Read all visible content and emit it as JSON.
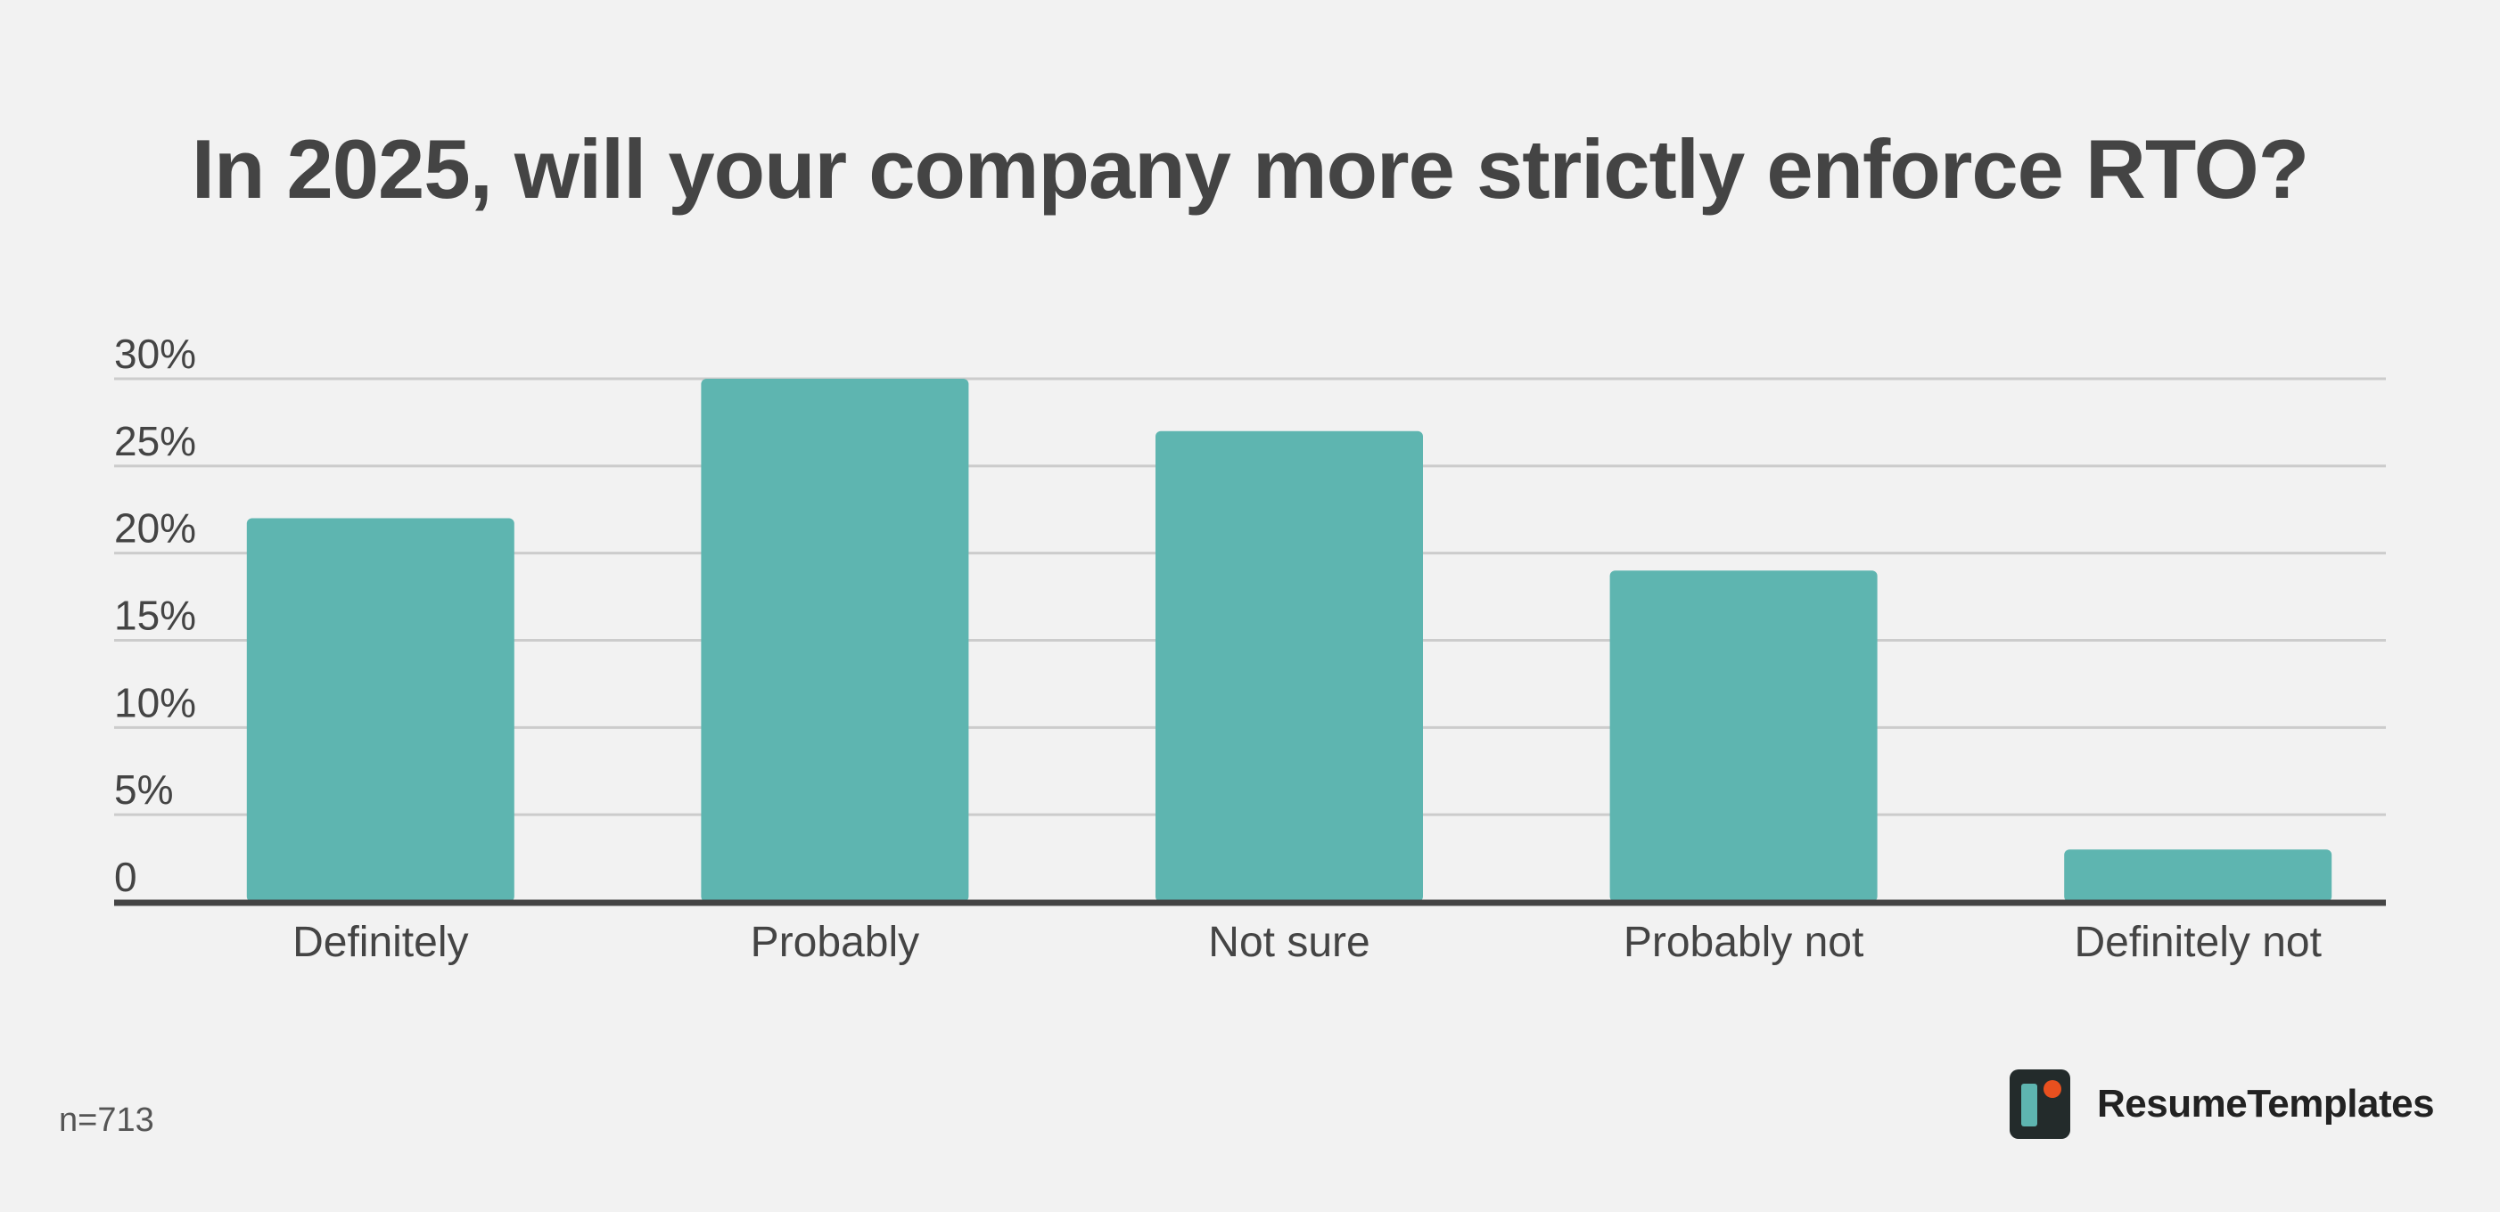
{
  "chart_data": {
    "type": "bar",
    "title": "In 2025, will your company more strictly enforce RTO?",
    "categories": [
      "Definitely",
      "Probably",
      "Not sure",
      "Probably not",
      "Definitely not"
    ],
    "values": [
      22,
      30,
      27,
      19,
      3
    ],
    "y_ticks": [
      "0",
      "5%",
      "10%",
      "15%",
      "20%",
      "25%",
      "30%"
    ],
    "ylim": [
      0,
      30
    ],
    "grid": true,
    "xlabel": "",
    "ylabel": "",
    "bar_color": "#5eb5b0",
    "grid_color": "#cccccc",
    "axis_color": "#444444"
  },
  "footer": {
    "sample_size": "n=713",
    "brand_name": "ResumeTemplates",
    "brand_accent": "#e8501f",
    "brand_logo_icon": "resumetemplates-logo-icon"
  }
}
